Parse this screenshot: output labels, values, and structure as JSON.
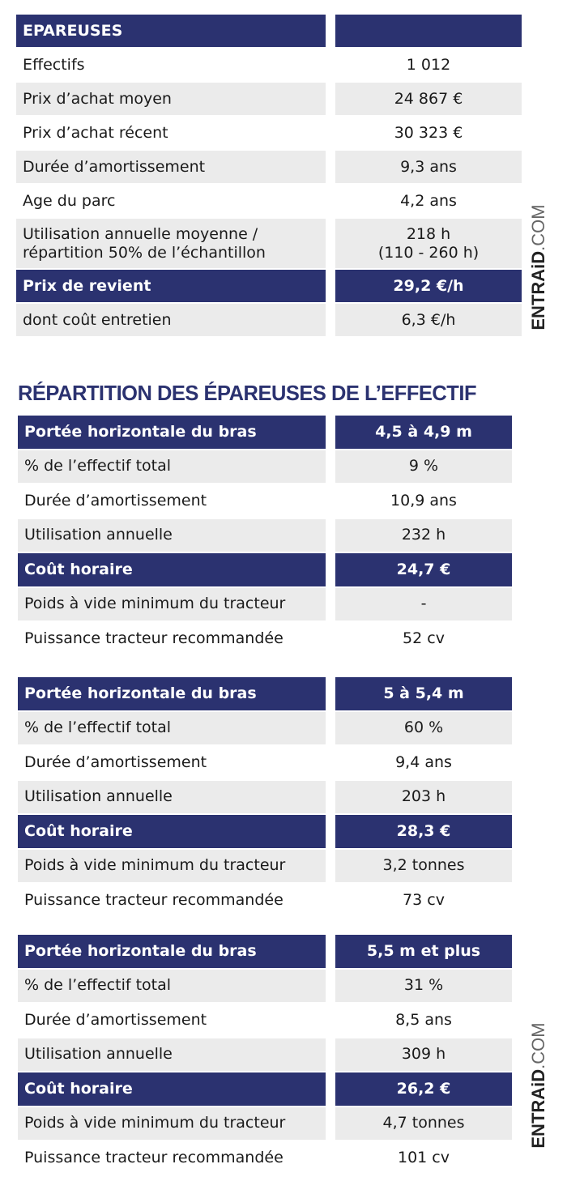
{
  "summary": {
    "header": [
      "EPAREUSES",
      ""
    ],
    "rows": [
      {
        "label": "Effectifs",
        "value": "1 012",
        "style": "w"
      },
      {
        "label": "Prix d’achat moyen",
        "value": "24 867 €",
        "style": "g"
      },
      {
        "label": "Prix d’achat récent",
        "value": "30 323 €",
        "style": "w"
      },
      {
        "label": "Durée d’amortissement",
        "value": "9,3 ans",
        "style": "g"
      },
      {
        "label": "Age du parc",
        "value": "4,2 ans",
        "style": "w"
      },
      {
        "label": "Utilisation annuelle moyenne / répartition 50% de l’échantillon",
        "value": "218 h\n(110 - 260 h)",
        "style": "g",
        "tall": true
      },
      {
        "label": "Prix de revient",
        "value": "29,2 €/h",
        "style": "n"
      },
      {
        "label": "dont coût entretien",
        "value": "6,3 €/h",
        "style": "g"
      }
    ]
  },
  "section_title": "RÉPARTITION DES ÉPAREUSES DE L’EFFECTIF",
  "groups": [
    {
      "rows": [
        {
          "label": "Portée horizontale du bras",
          "value": "4,5 à 4,9 m",
          "style": "n"
        },
        {
          "label": "% de l’effectif total",
          "value": "9 %",
          "style": "g"
        },
        {
          "label": "Durée d’amortissement",
          "value": "10,9 ans",
          "style": "w"
        },
        {
          "label": "Utilisation annuelle",
          "value": "232 h",
          "style": "g"
        },
        {
          "label": "Coût horaire",
          "value": "24,7 €",
          "style": "n"
        },
        {
          "label": "Poids à vide minimum du tracteur",
          "value": "-",
          "style": "g"
        },
        {
          "label": "Puissance tracteur recommandée",
          "value": "52 cv",
          "style": "w"
        }
      ]
    },
    {
      "rows": [
        {
          "label": "Portée horizontale du bras",
          "value": "5 à 5,4 m",
          "style": "n"
        },
        {
          "label": "% de l’effectif total",
          "value": "60 %",
          "style": "g"
        },
        {
          "label": "Durée d’amortissement",
          "value": "9,4 ans",
          "style": "w"
        },
        {
          "label": "Utilisation annuelle",
          "value": "203 h",
          "style": "g"
        },
        {
          "label": "Coût horaire",
          "value": "28,3 €",
          "style": "n"
        },
        {
          "label": "Poids à vide minimum du tracteur",
          "value": "3,2 tonnes",
          "style": "g"
        },
        {
          "label": "Puissance tracteur recommandée",
          "value": "73 cv",
          "style": "w"
        }
      ]
    },
    {
      "rows": [
        {
          "label": "Portée horizontale du bras",
          "value": "5,5 m et plus",
          "style": "n"
        },
        {
          "label": "% de l’effectif total",
          "value": "31 %",
          "style": "g"
        },
        {
          "label": "Durée d’amortissement",
          "value": "8,5 ans",
          "style": "w"
        },
        {
          "label": "Utilisation annuelle",
          "value": "309 h",
          "style": "g"
        },
        {
          "label": "Coût horaire",
          "value": "26,2 €",
          "style": "n"
        },
        {
          "label": "Poids à vide minimum du tracteur",
          "value": "4,7 tonnes",
          "style": "g"
        },
        {
          "label": "Puissance tracteur recommandée",
          "value": "101 cv",
          "style": "w"
        }
      ]
    }
  ],
  "watermark": {
    "brand": "ENTRAiD",
    "suffix": ".COM"
  },
  "colors": {
    "navy": "#2b3270",
    "gray": "#ebebeb"
  }
}
